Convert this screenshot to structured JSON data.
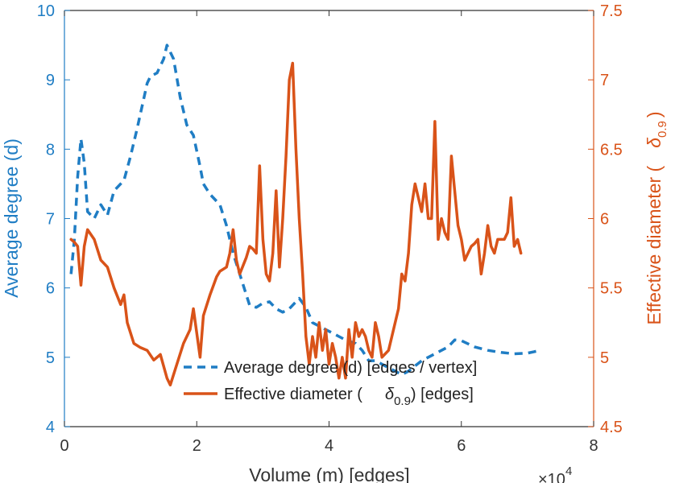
{
  "chart_data": {
    "type": "line",
    "xlabel": "Volume (m) [edges]",
    "x_multiplier": "×10",
    "x_multiplier_exp": "4",
    "xlim": [
      0,
      80000
    ],
    "xticks": [
      0,
      20000,
      40000,
      60000,
      80000
    ],
    "xtick_labels": [
      "0",
      "2",
      "4",
      "6",
      "8"
    ],
    "y_left": {
      "label": "Average degree (d)",
      "lim": [
        4,
        10
      ],
      "ticks": [
        4,
        5,
        6,
        7,
        8,
        9,
        10
      ],
      "tick_labels": [
        "4",
        "5",
        "6",
        "7",
        "8",
        "9",
        "10"
      ],
      "color": "#1f7dc4"
    },
    "y_right": {
      "label_main": "Effective diameter (",
      "label_symbol": "δ",
      "label_sub": "0.9",
      "label_close": ")",
      "lim": [
        4.5,
        7.5
      ],
      "ticks": [
        4.5,
        5,
        5.5,
        6,
        6.5,
        7,
        7.5
      ],
      "tick_labels": [
        "4.5",
        "5",
        "5.5",
        "6",
        "6.5",
        "7",
        "7.5"
      ],
      "color": "#d95319"
    },
    "grid": false,
    "legend_position": "bottom-center",
    "series": [
      {
        "name": "Average degree (d) [edges / vertex]",
        "axis": "left",
        "style": "dashed",
        "color": "#1f7dc4",
        "points": [
          [
            1000,
            6.2
          ],
          [
            1500,
            6.7
          ],
          [
            2000,
            7.6
          ],
          [
            2500,
            8.15
          ],
          [
            3000,
            7.8
          ],
          [
            3500,
            7.1
          ],
          [
            4500,
            7.0
          ],
          [
            5500,
            7.2
          ],
          [
            6500,
            7.05
          ],
          [
            7500,
            7.4
          ],
          [
            9000,
            7.55
          ],
          [
            10000,
            7.9
          ],
          [
            11000,
            8.3
          ],
          [
            12500,
            8.95
          ],
          [
            13000,
            9.05
          ],
          [
            14000,
            9.1
          ],
          [
            15000,
            9.3
          ],
          [
            15500,
            9.5
          ],
          [
            16500,
            9.3
          ],
          [
            17500,
            8.75
          ],
          [
            18500,
            8.35
          ],
          [
            19500,
            8.2
          ],
          [
            20500,
            7.75
          ],
          [
            21000,
            7.5
          ],
          [
            22000,
            7.35
          ],
          [
            23500,
            7.2
          ],
          [
            24500,
            6.9
          ],
          [
            25500,
            6.5
          ],
          [
            26500,
            6.2
          ],
          [
            27500,
            5.9
          ],
          [
            28000,
            5.75
          ],
          [
            29000,
            5.72
          ],
          [
            30000,
            5.78
          ],
          [
            31000,
            5.8
          ],
          [
            32000,
            5.7
          ],
          [
            33000,
            5.65
          ],
          [
            34000,
            5.7
          ],
          [
            35000,
            5.8
          ],
          [
            35500,
            5.85
          ],
          [
            36500,
            5.72
          ],
          [
            37500,
            5.5
          ],
          [
            38500,
            5.45
          ],
          [
            39500,
            5.4
          ],
          [
            40500,
            5.35
          ],
          [
            41500,
            5.3
          ],
          [
            42500,
            5.25
          ],
          [
            44000,
            5.2
          ],
          [
            45000,
            5.1
          ],
          [
            46000,
            4.95
          ],
          [
            47000,
            4.95
          ],
          [
            48000,
            4.9
          ],
          [
            49000,
            4.85
          ],
          [
            50000,
            4.8
          ],
          [
            51000,
            4.75
          ],
          [
            52000,
            4.8
          ],
          [
            54000,
            4.95
          ],
          [
            56000,
            5.05
          ],
          [
            58000,
            5.15
          ],
          [
            59000,
            5.25
          ],
          [
            60000,
            5.24
          ],
          [
            62000,
            5.15
          ],
          [
            64000,
            5.1
          ],
          [
            66000,
            5.07
          ],
          [
            68000,
            5.05
          ],
          [
            70000,
            5.06
          ],
          [
            71000,
            5.08
          ],
          [
            72000,
            5.1
          ]
        ]
      },
      {
        "name": "Effective diameter (δ0.9) [edges]",
        "name_main": "Effective diameter (",
        "name_symbol": "δ",
        "name_sub": "0.9",
        "name_close": ") [edges]",
        "axis": "right",
        "style": "solid",
        "color": "#d95319",
        "points": [
          [
            1000,
            5.85
          ],
          [
            1500,
            5.83
          ],
          [
            2000,
            5.8
          ],
          [
            2500,
            5.52
          ],
          [
            3000,
            5.8
          ],
          [
            3500,
            5.92
          ],
          [
            4500,
            5.85
          ],
          [
            5500,
            5.7
          ],
          [
            6500,
            5.65
          ],
          [
            7500,
            5.5
          ],
          [
            8500,
            5.38
          ],
          [
            9000,
            5.45
          ],
          [
            9500,
            5.25
          ],
          [
            10500,
            5.1
          ],
          [
            11500,
            5.07
          ],
          [
            12500,
            5.05
          ],
          [
            13500,
            4.98
          ],
          [
            14500,
            5.02
          ],
          [
            15500,
            4.85
          ],
          [
            16000,
            4.8
          ],
          [
            17000,
            4.95
          ],
          [
            18000,
            5.1
          ],
          [
            19000,
            5.2
          ],
          [
            19500,
            5.35
          ],
          [
            20500,
            5.0
          ],
          [
            21000,
            5.3
          ],
          [
            22000,
            5.45
          ],
          [
            23000,
            5.58
          ],
          [
            23500,
            5.62
          ],
          [
            24500,
            5.65
          ],
          [
            25000,
            5.75
          ],
          [
            25500,
            5.92
          ],
          [
            26000,
            5.7
          ],
          [
            26500,
            5.6
          ],
          [
            27500,
            5.72
          ],
          [
            28000,
            5.8
          ],
          [
            28500,
            5.78
          ],
          [
            29000,
            5.75
          ],
          [
            29500,
            6.38
          ],
          [
            30000,
            5.85
          ],
          [
            30500,
            5.6
          ],
          [
            31000,
            5.55
          ],
          [
            31500,
            5.75
          ],
          [
            32000,
            6.2
          ],
          [
            32500,
            5.65
          ],
          [
            33000,
            6.0
          ],
          [
            33500,
            6.45
          ],
          [
            34000,
            7.0
          ],
          [
            34500,
            7.12
          ],
          [
            35000,
            6.5
          ],
          [
            35500,
            6.0
          ],
          [
            36000,
            5.6
          ],
          [
            36500,
            5.15
          ],
          [
            37000,
            4.95
          ],
          [
            37500,
            5.15
          ],
          [
            38000,
            5.0
          ],
          [
            38500,
            5.25
          ],
          [
            39000,
            5.05
          ],
          [
            39500,
            5.2
          ],
          [
            40000,
            4.95
          ],
          [
            40500,
            5.1
          ],
          [
            41000,
            5.0
          ],
          [
            41500,
            4.85
          ],
          [
            42000,
            5.0
          ],
          [
            42500,
            4.85
          ],
          [
            43000,
            5.2
          ],
          [
            43500,
            5.0
          ],
          [
            44000,
            5.25
          ],
          [
            44500,
            5.15
          ],
          [
            45000,
            5.2
          ],
          [
            45500,
            5.15
          ],
          [
            46000,
            5.05
          ],
          [
            46500,
            5.0
          ],
          [
            47000,
            5.25
          ],
          [
            47500,
            5.15
          ],
          [
            48000,
            5.0
          ],
          [
            49000,
            5.05
          ],
          [
            49500,
            5.15
          ],
          [
            50500,
            5.35
          ],
          [
            51000,
            5.6
          ],
          [
            51500,
            5.55
          ],
          [
            52000,
            5.75
          ],
          [
            52500,
            6.1
          ],
          [
            53000,
            6.25
          ],
          [
            53500,
            6.15
          ],
          [
            54000,
            6.05
          ],
          [
            54500,
            6.25
          ],
          [
            55000,
            6.0
          ],
          [
            55500,
            6.0
          ],
          [
            56000,
            6.7
          ],
          [
            56500,
            5.85
          ],
          [
            57000,
            6.0
          ],
          [
            57500,
            5.9
          ],
          [
            58000,
            5.85
          ],
          [
            58500,
            6.45
          ],
          [
            59000,
            6.2
          ],
          [
            59500,
            5.95
          ],
          [
            60000,
            5.85
          ],
          [
            60500,
            5.7
          ],
          [
            61500,
            5.8
          ],
          [
            62000,
            5.82
          ],
          [
            62500,
            5.85
          ],
          [
            63000,
            5.6
          ],
          [
            63500,
            5.75
          ],
          [
            64000,
            5.95
          ],
          [
            64500,
            5.8
          ],
          [
            65000,
            5.75
          ],
          [
            65500,
            5.85
          ],
          [
            66500,
            5.85
          ],
          [
            67000,
            5.9
          ],
          [
            67500,
            6.15
          ],
          [
            68000,
            5.8
          ],
          [
            68500,
            5.85
          ],
          [
            69000,
            5.75
          ]
        ]
      }
    ]
  }
}
